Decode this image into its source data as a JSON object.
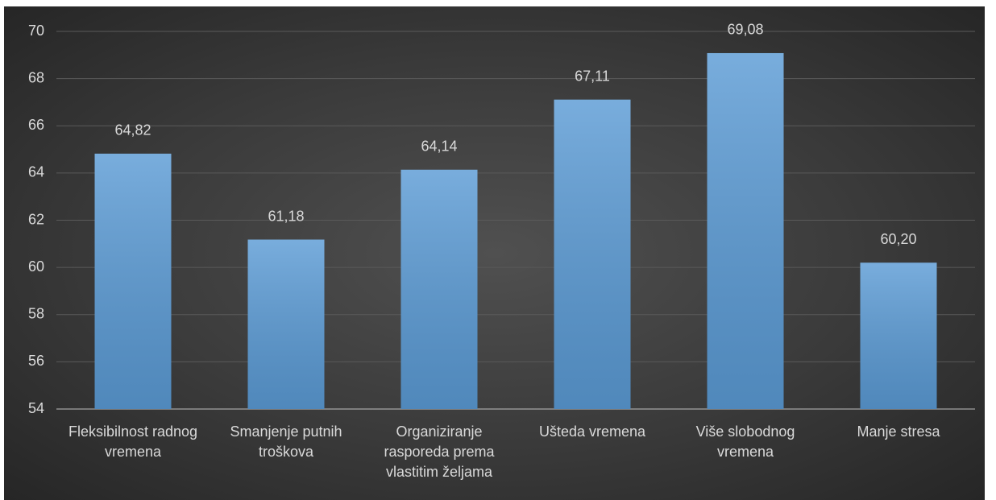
{
  "chart_data": {
    "type": "bar",
    "categories": [
      "Fleksibilnost radnog vremena",
      "Smanjenje putnih troškova",
      "Organiziranje rasporeda prema vlastitim željama",
      "Ušteda vremena",
      "Više slobodnog vremena",
      "Manje stresa"
    ],
    "values": [
      64.82,
      61.18,
      64.14,
      67.11,
      69.08,
      60.2
    ],
    "value_labels": [
      "64,82",
      "61,18",
      "64,14",
      "67,11",
      "69,08",
      "60,20"
    ],
    "color": "#5b9bd5",
    "ylim": [
      54,
      70
    ],
    "yticks": [
      54,
      56,
      58,
      60,
      62,
      64,
      66,
      68,
      70
    ],
    "grid": true
  }
}
